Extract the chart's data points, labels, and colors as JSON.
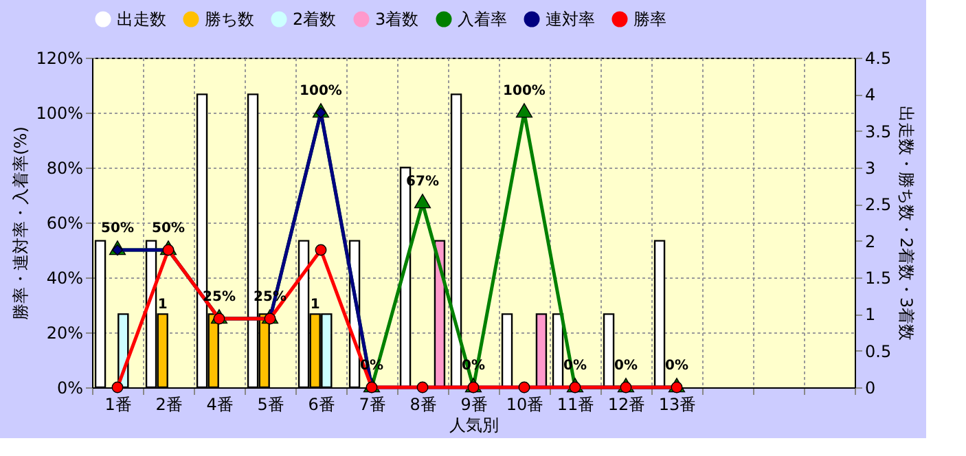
{
  "chart_data": {
    "type": "bar",
    "xlabel": "人気別",
    "ylabel": "勝率・連対率・入着率(%)",
    "y2label": "出走数・勝ち数・2着数・3着数",
    "categories": [
      "1番",
      "2番",
      "4番",
      "5番",
      "6番",
      "7番",
      "8番",
      "9番",
      "10番",
      "11番",
      "12番",
      "13番",
      null,
      null,
      null
    ],
    "series": [
      {
        "name": "出走数",
        "axis": "y2",
        "color": "#ffffff",
        "values": [
          2,
          2,
          4,
          4,
          2,
          2,
          3,
          4,
          1,
          1,
          1,
          2,
          null,
          null,
          null
        ]
      },
      {
        "name": "勝ち数",
        "axis": "y2",
        "color": "#ffc000",
        "values": [
          0,
          1,
          1,
          1,
          1,
          0,
          0,
          0,
          0,
          0,
          0,
          0,
          null,
          null,
          null
        ],
        "value_labels": [
          null,
          "1",
          null,
          null,
          "1",
          null,
          null,
          null,
          null,
          null,
          null,
          null,
          null,
          null,
          null
        ]
      },
      {
        "name": "2着数",
        "axis": "y2",
        "color": "#ccffff",
        "values": [
          1,
          0,
          0,
          0,
          1,
          0,
          0,
          0,
          0,
          0,
          0,
          0,
          null,
          null,
          null
        ]
      },
      {
        "name": "3着数",
        "axis": "y2",
        "color": "#ff99cc",
        "values": [
          0,
          0,
          0,
          0,
          0,
          0,
          2,
          0,
          1,
          0,
          0,
          0,
          null,
          null,
          null
        ]
      },
      {
        "name": "入着率",
        "type": "line",
        "marker": "triangle",
        "color": "#008000",
        "values": [
          50,
          50,
          25,
          25,
          100,
          0,
          67,
          0,
          100,
          0,
          0,
          0,
          null,
          null,
          null
        ],
        "value_labels": [
          "50%",
          "50%",
          "25%",
          "25%",
          "100%",
          "0%",
          "67%",
          "0%",
          "100%",
          "0%",
          "0%",
          "0%",
          null,
          null,
          null
        ]
      },
      {
        "name": "連対率",
        "type": "line",
        "marker": "diamond",
        "color": "#000080",
        "values": [
          50,
          50,
          25,
          25,
          100,
          0,
          0,
          0,
          0,
          0,
          0,
          0,
          null,
          null,
          null
        ]
      },
      {
        "name": "勝率",
        "type": "line",
        "marker": "circle",
        "color": "#ff0000",
        "values": [
          0,
          50,
          25,
          25,
          50,
          0,
          0,
          0,
          0,
          0,
          0,
          0,
          null,
          null,
          null
        ]
      }
    ],
    "ylim": [
      0,
      120
    ],
    "yticks": [
      {
        "value": 0,
        "label": "0%"
      },
      {
        "value": 20,
        "label": "20%"
      },
      {
        "value": 40,
        "label": "40%"
      },
      {
        "value": 60,
        "label": "60%"
      },
      {
        "value": 80,
        "label": "80%"
      },
      {
        "value": 100,
        "label": "100%"
      },
      {
        "value": 120,
        "label": "120%"
      }
    ],
    "y2lim": [
      0,
      4.5
    ],
    "y2ticks": [
      0,
      0.5,
      1,
      1.5,
      2,
      2.5,
      3,
      3.5,
      4,
      4.5
    ],
    "grid": true,
    "legend": "top"
  }
}
